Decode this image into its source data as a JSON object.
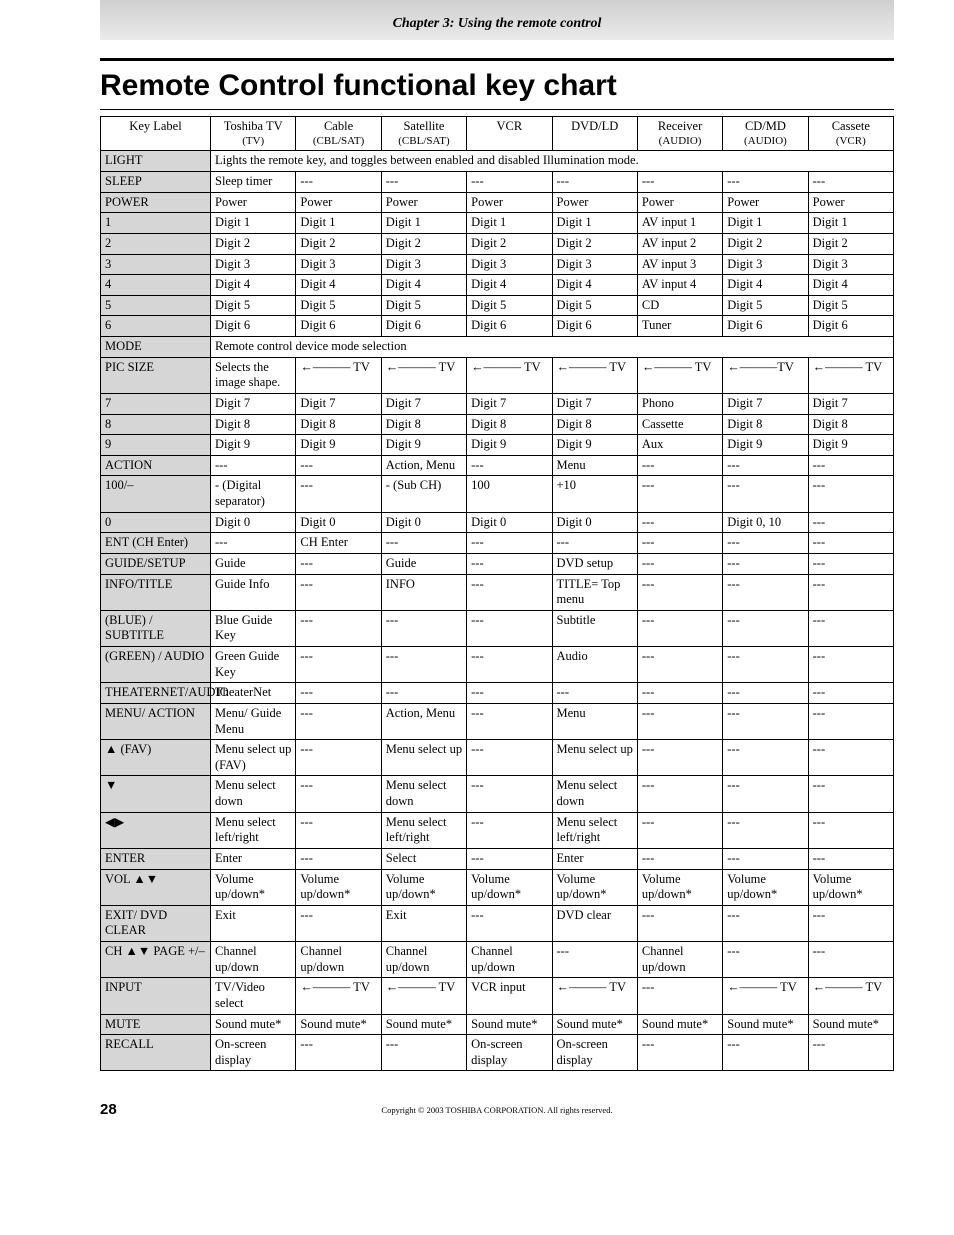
{
  "chapter_heading": "Chapter 3: Using the remote control",
  "page_title": "Remote Control functional key chart",
  "page_number": "28",
  "copyright": "Copyright © 2003 TOSHIBA CORPORATION. All rights reserved.",
  "headers": [
    {
      "top": "Key Label",
      "sub": ""
    },
    {
      "top": "Toshiba TV",
      "sub": "(TV)"
    },
    {
      "top": "Cable",
      "sub": "(CBL/SAT)"
    },
    {
      "top": "Satellite",
      "sub": "(CBL/SAT)"
    },
    {
      "top": "VCR",
      "sub": ""
    },
    {
      "top": "DVD/LD",
      "sub": ""
    },
    {
      "top": "Receiver",
      "sub": "(AUDIO)"
    },
    {
      "top": "CD/MD",
      "sub": "(AUDIO)"
    },
    {
      "top": "Cassete",
      "sub": "(VCR)"
    }
  ],
  "rows": [
    {
      "label": "LIGHT",
      "span": "Lights the remote key, and toggles between enabled and disabled Illumination mode."
    },
    {
      "label": "SLEEP",
      "cells": [
        "Sleep timer",
        "---",
        "---",
        "---",
        "---",
        "---",
        "---",
        "---"
      ]
    },
    {
      "label": "POWER",
      "cells": [
        "Power",
        "Power",
        "Power",
        "Power",
        "Power",
        "Power",
        "Power",
        "Power"
      ]
    },
    {
      "label": "1",
      "cells": [
        "Digit 1",
        "Digit 1",
        "Digit 1",
        "Digit 1",
        "Digit 1",
        "AV input 1",
        "Digit 1",
        "Digit 1"
      ]
    },
    {
      "label": "2",
      "cells": [
        "Digit 2",
        "Digit 2",
        "Digit 2",
        "Digit 2",
        "Digit 2",
        "AV input 2",
        "Digit 2",
        "Digit 2"
      ]
    },
    {
      "label": "3",
      "cells": [
        "Digit 3",
        "Digit 3",
        "Digit 3",
        "Digit 3",
        "Digit 3",
        "AV input 3",
        "Digit 3",
        "Digit 3"
      ]
    },
    {
      "label": "4",
      "cells": [
        "Digit 4",
        "Digit 4",
        "Digit 4",
        "Digit 4",
        "Digit 4",
        "AV input 4",
        "Digit 4",
        "Digit 4"
      ]
    },
    {
      "label": "5",
      "cells": [
        "Digit 5",
        "Digit 5",
        "Digit 5",
        "Digit 5",
        "Digit 5",
        "CD",
        "Digit 5",
        "Digit 5"
      ]
    },
    {
      "label": "6",
      "cells": [
        "Digit 6",
        "Digit 6",
        "Digit 6",
        "Digit 6",
        "Digit 6",
        "Tuner",
        "Digit 6",
        "Digit 6"
      ]
    },
    {
      "label": "MODE",
      "span": "Remote control device mode selection"
    },
    {
      "label": "PIC SIZE",
      "cells": [
        "Selects the image shape.",
        "←——— TV",
        "←——— TV",
        "←——— TV",
        "←——— TV",
        "←——— TV",
        "←———TV",
        "←——— TV"
      ]
    },
    {
      "label": "7",
      "cells": [
        "Digit 7",
        "Digit 7",
        "Digit 7",
        "Digit 7",
        "Digit 7",
        "Phono",
        "Digit 7",
        "Digit 7"
      ]
    },
    {
      "label": "8",
      "cells": [
        "Digit 8",
        "Digit 8",
        "Digit 8",
        "Digit 8",
        "Digit 8",
        "Cassette",
        "Digit 8",
        "Digit 8"
      ]
    },
    {
      "label": "9",
      "cells": [
        "Digit 9",
        "Digit 9",
        "Digit 9",
        "Digit 9",
        "Digit 9",
        "Aux",
        "Digit 9",
        "Digit 9"
      ]
    },
    {
      "label": "ACTION",
      "cells": [
        "---",
        "---",
        "Action, Menu",
        "---",
        "Menu",
        "---",
        "---",
        "---"
      ]
    },
    {
      "label": "100/–",
      "cells": [
        "- (Digital separator)",
        "---",
        "- (Sub CH)",
        "100",
        "+10",
        "---",
        "---",
        "---"
      ]
    },
    {
      "label": "0",
      "cells": [
        "Digit 0",
        "Digit 0",
        "Digit 0",
        "Digit 0",
        "Digit 0",
        "---",
        "Digit 0, 10",
        "---"
      ]
    },
    {
      "label": "ENT (CH Enter)",
      "cells": [
        "---",
        "CH Enter",
        "---",
        "---",
        "---",
        "---",
        "---",
        "---"
      ]
    },
    {
      "label": "GUIDE/SETUP",
      "cells": [
        "Guide",
        "---",
        "Guide",
        "---",
        "DVD setup",
        "---",
        "---",
        "---"
      ]
    },
    {
      "label": "INFO/TITLE",
      "cells": [
        "Guide Info",
        "---",
        "INFO",
        "---",
        "TITLE= Top menu",
        "---",
        "---",
        "---"
      ]
    },
    {
      "label": "(BLUE) / SUBTITLE",
      "cells": [
        "Blue Guide Key",
        "---",
        "---",
        "---",
        "Subtitle",
        "---",
        "---",
        "---"
      ]
    },
    {
      "label": "(GREEN) / AUDIO",
      "cells": [
        "Green Guide Key",
        "---",
        "---",
        "---",
        "Audio",
        "---",
        "---",
        "---"
      ]
    },
    {
      "label": "THEATERNET/AUDIO",
      "cells": [
        "TheaterNet",
        "---",
        "---",
        "---",
        "---",
        "---",
        "---",
        "---"
      ]
    },
    {
      "label": "MENU/ ACTION",
      "cells": [
        "Menu/ Guide Menu",
        "---",
        "Action, Menu",
        "---",
        "Menu",
        "---",
        "---",
        "---"
      ]
    },
    {
      "label": "▲ (FAV)",
      "cells": [
        "Menu select up (FAV)",
        "---",
        "Menu select up",
        "---",
        "Menu select up",
        "---",
        "---",
        "---"
      ]
    },
    {
      "label": "▼",
      "cells": [
        "Menu select down",
        "---",
        "Menu select down",
        "---",
        "Menu select down",
        "---",
        "---",
        "---"
      ]
    },
    {
      "label": "◀▶",
      "cells": [
        "Menu select left/right",
        "---",
        "Menu select left/right",
        "---",
        "Menu select left/right",
        "---",
        "---",
        "---"
      ]
    },
    {
      "label": "ENTER",
      "cells": [
        "Enter",
        "---",
        "Select",
        "---",
        "Enter",
        "---",
        "---",
        "---"
      ]
    },
    {
      "label": "VOL ▲▼",
      "cells": [
        "Volume up/down*",
        "Volume up/down*",
        "Volume up/down*",
        "Volume up/down*",
        "Volume up/down*",
        "Volume up/down*",
        "Volume up/down*",
        "Volume up/down*"
      ]
    },
    {
      "label": "EXIT/ DVD CLEAR",
      "cells": [
        "Exit",
        "---",
        "Exit",
        "---",
        "DVD clear",
        "---",
        "---",
        "---"
      ]
    },
    {
      "label": "CH ▲▼ PAGE +/–",
      "cells": [
        "Channel up/down",
        "Channel up/down",
        "Channel up/down",
        "Channel up/down",
        "---",
        "Channel up/down",
        "---",
        "---"
      ]
    },
    {
      "label": "INPUT",
      "cells": [
        "TV/Video select",
        "←——— TV",
        "←——— TV",
        "VCR input",
        "←——— TV",
        "---",
        "←——— TV",
        "←——— TV"
      ]
    },
    {
      "label": "MUTE",
      "cells": [
        "Sound mute*",
        "Sound mute*",
        "Sound mute*",
        "Sound mute*",
        "Sound mute*",
        "Sound mute*",
        "Sound mute*",
        "Sound mute*"
      ]
    },
    {
      "label": "RECALL",
      "cells": [
        "On-screen display",
        "---",
        "---",
        "On-screen display",
        "On-screen display",
        "---",
        "---",
        "---"
      ]
    }
  ]
}
